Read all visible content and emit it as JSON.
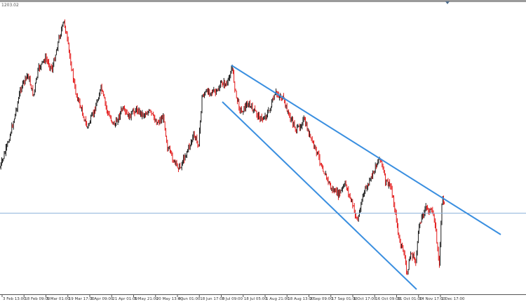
{
  "header": {
    "price_label": "1203.02"
  },
  "colors": {
    "up": "#000000",
    "down": "#e00000",
    "trendline": "#3a8fe0",
    "hline": "#8fb4dc",
    "axis": "#333333"
  },
  "chart_data": {
    "type": "candlestick",
    "title": "",
    "x_ticks": [
      "3 Feb 13:00",
      "18 Feb 09:00",
      "5 Mar 01:00",
      "19 Mar 17:00",
      "3 Apr 09:00",
      "21 Apr 01:00",
      "5 May 21:00",
      "20 May 13:00",
      "4 Jun 01:00",
      "18 Jun 17:00",
      "3 Jul 09:00",
      "18 Jul 05:00",
      "1 Aug 21:00",
      "18 Aug 13:00",
      "2 Sep 09:00",
      "17 Sep 01:00",
      "1 Oct 17:00",
      "16 Oct 09:00",
      "31 Oct 01:00",
      "14 Nov 17:00",
      "1 Dec 17:00"
    ],
    "price_path_levels": [
      [
        0,
        45
      ],
      [
        1.4,
        53
      ],
      [
        2.8,
        63
      ],
      [
        4.2,
        75
      ],
      [
        5.6,
        80
      ],
      [
        6.7,
        72
      ],
      [
        7.7,
        82
      ],
      [
        9.1,
        86
      ],
      [
        10.5,
        82
      ],
      [
        11.9,
        94
      ],
      [
        12.9,
        100
      ],
      [
        14,
        87
      ],
      [
        15.1,
        74
      ],
      [
        16.5,
        66
      ],
      [
        17.5,
        60
      ],
      [
        18.9,
        66
      ],
      [
        20.3,
        75
      ],
      [
        21.7,
        65
      ],
      [
        23.1,
        61
      ],
      [
        24.5,
        67
      ],
      [
        25.9,
        64
      ],
      [
        27.3,
        67
      ],
      [
        28.7,
        65
      ],
      [
        30.1,
        66
      ],
      [
        31.5,
        62
      ],
      [
        32.9,
        64
      ],
      [
        33.6,
        53
      ],
      [
        35,
        47
      ],
      [
        36.1,
        45
      ],
      [
        37.5,
        51
      ],
      [
        38.9,
        57
      ],
      [
        39.9,
        54
      ],
      [
        40.6,
        72
      ],
      [
        42,
        74
      ],
      [
        43.4,
        73
      ],
      [
        44.6,
        77
      ],
      [
        45.6,
        76
      ],
      [
        46.6,
        83
      ],
      [
        47.4,
        72
      ],
      [
        48.4,
        66
      ],
      [
        49.8,
        69
      ],
      [
        51.2,
        66
      ],
      [
        52.6,
        63
      ],
      [
        54,
        66
      ],
      [
        55.4,
        73
      ],
      [
        56.8,
        71
      ],
      [
        58.2,
        64
      ],
      [
        59.6,
        59
      ],
      [
        61,
        63
      ],
      [
        62.4,
        56
      ],
      [
        63.8,
        50
      ],
      [
        65.2,
        43
      ],
      [
        66.6,
        37
      ],
      [
        68,
        35
      ],
      [
        69.4,
        39
      ],
      [
        70.8,
        31
      ],
      [
        71.8,
        25
      ],
      [
        72.9,
        35
      ],
      [
        74.3,
        40
      ],
      [
        75.7,
        47
      ],
      [
        76.4,
        49
      ],
      [
        77.4,
        40
      ],
      [
        78.5,
        38
      ],
      [
        79.6,
        26
      ],
      [
        80.2,
        17
      ],
      [
        81.1,
        14
      ],
      [
        81.7,
        5
      ],
      [
        82.5,
        13
      ],
      [
        83.5,
        10
      ],
      [
        84.2,
        24
      ],
      [
        85.4,
        30
      ],
      [
        86.5,
        29
      ],
      [
        87.3,
        26
      ],
      [
        88.2,
        8
      ],
      [
        88.8,
        34
      ],
      [
        89.3,
        32
      ]
    ],
    "trendlines": [
      {
        "from": [
          "3 Jul 09:00",
          100
        ],
        "to": [
          "after 1 Dec 17:00",
          40
        ]
      },
      {
        "from": [
          "3 Jul 09:00",
          70
        ],
        "to": [
          "31 Oct 01:00",
          0
        ]
      }
    ],
    "horizontal_line_level": 28,
    "grid": false
  }
}
